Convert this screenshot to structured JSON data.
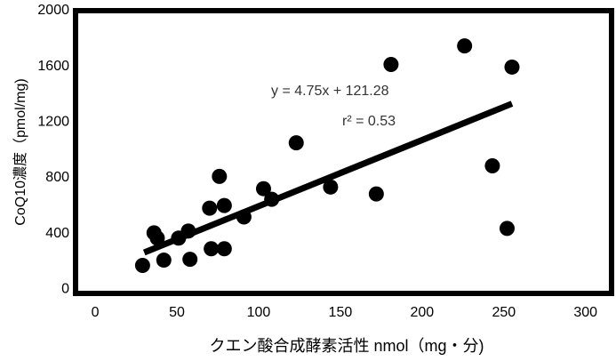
{
  "chart_data": {
    "type": "scatter",
    "xlabel": "クエン酸合成酵素活性 nmol（mg・分)",
    "ylabel": "CoQ10濃度（pmol/mg)",
    "equation": "y = 4.75x + 121.28",
    "r_squared": "r² = 0.53",
    "x": [
      29,
      36,
      38,
      42,
      51,
      57,
      58,
      70,
      71,
      79,
      79,
      76,
      91,
      103,
      108,
      123,
      144,
      172,
      181,
      226,
      243,
      255,
      252
    ],
    "values": [
      171,
      405,
      367,
      209,
      367,
      418,
      215,
      582,
      291,
      601,
      291,
      810,
      519,
      722,
      646,
      1051,
      734,
      684,
      1614,
      1747,
      886,
      1595,
      437
    ],
    "color": "#000000",
    "trendline": {
      "slope": 4.75,
      "intercept": 121.28,
      "x_range": [
        30,
        255
      ]
    },
    "xlim": [
      -12,
      317
    ],
    "ylim": [
      -30,
      2000
    ],
    "xticks": [
      0,
      50,
      100,
      150,
      200,
      250,
      300
    ],
    "yticks": [
      0,
      400,
      800,
      1200,
      1600,
      2000
    ]
  }
}
